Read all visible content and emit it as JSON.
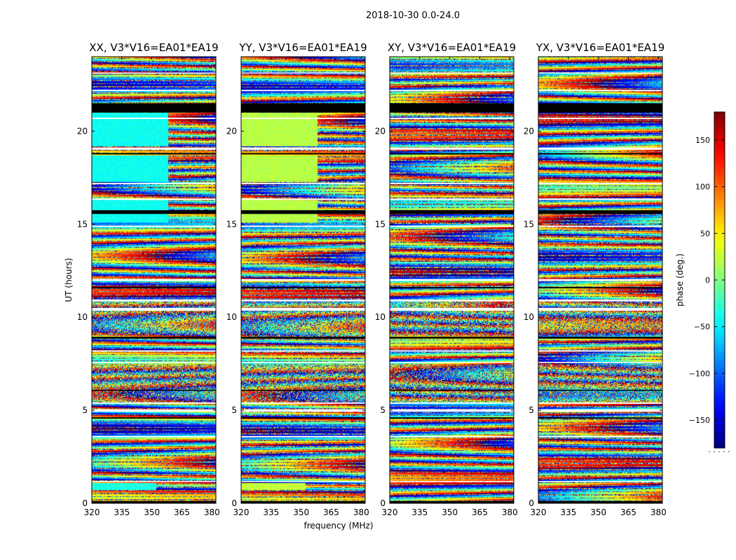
{
  "figure": {
    "suptitle": "2018-10-30 0.0-24.0",
    "xlabel": "frequency (MHz)",
    "ylabel": "UT (hours)",
    "colorbar_label": "phase (deg.)",
    "colorbar_footer": ". . . . ."
  },
  "chart_data": {
    "type": "heatmap",
    "x": {
      "label": "frequency (MHz)",
      "range": [
        320,
        382
      ],
      "ticks": [
        320,
        335,
        350,
        365,
        380
      ],
      "tick_labels": [
        "320",
        "335",
        "350",
        "365",
        "380"
      ]
    },
    "y": {
      "label": "UT (hours)",
      "range": [
        0,
        24
      ],
      "ticks": [
        0,
        5,
        10,
        15,
        20
      ],
      "tick_labels": [
        "0",
        "5",
        "10",
        "15",
        "20"
      ]
    },
    "colorbar": {
      "label": "phase (deg.)",
      "range": [
        -180,
        180
      ],
      "ticks": [
        -150,
        -100,
        -50,
        0,
        50,
        100,
        150
      ],
      "tick_labels": [
        "−150",
        "−100",
        "−50",
        "0",
        "50",
        "100",
        "150"
      ],
      "colormap": "jet"
    },
    "panels": [
      {
        "title": "XX, V3*V16=EA01*EA19",
        "polarization": "XX"
      },
      {
        "title": "YY, V3*V16=EA01*EA19",
        "polarization": "YY"
      },
      {
        "title": "XY, V3*V16=EA01*EA19",
        "polarization": "XY"
      },
      {
        "title": "YX, V3*V16=EA01*EA19",
        "polarization": "YX"
      }
    ],
    "flagged_bands_ut_hours": [
      [
        0.0,
        0.12
      ],
      [
        1.15,
        1.2
      ],
      [
        3.55,
        3.62
      ],
      [
        4.55,
        4.62
      ],
      [
        4.92,
        5.05
      ],
      [
        5.35,
        5.42
      ],
      [
        6.05,
        6.1
      ],
      [
        7.55,
        7.6
      ],
      [
        8.15,
        8.22
      ],
      [
        8.85,
        8.95
      ],
      [
        10.35,
        10.5
      ],
      [
        10.85,
        10.95
      ],
      [
        11.55,
        11.62
      ],
      [
        11.95,
        12.05
      ],
      [
        14.85,
        14.92
      ],
      [
        15.55,
        15.75
      ],
      [
        16.3,
        16.38
      ],
      [
        17.15,
        17.22
      ],
      [
        18.75,
        18.82
      ],
      [
        19.0,
        19.12
      ],
      [
        20.65,
        20.72
      ],
      [
        21.0,
        21.5
      ],
      [
        22.15,
        22.22
      ],
      [
        23.1,
        23.15
      ]
    ]
  }
}
